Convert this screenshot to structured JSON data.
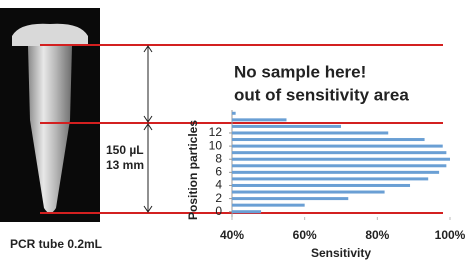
{
  "chart_data": {
    "type": "hbar",
    "ylabel": "Position particles",
    "xlabel": "Sensitivity",
    "x": [
      0,
      1,
      2,
      3,
      4,
      5,
      6,
      7,
      8,
      9,
      10,
      11,
      12,
      13,
      14,
      15
    ],
    "values": [
      48,
      60,
      72,
      82,
      89,
      94,
      97,
      99,
      100,
      99,
      98,
      93,
      83,
      70,
      55,
      41
    ],
    "color": "#6a9fd4",
    "xlim": [
      40,
      100
    ],
    "xticks": [
      {
        "value": 40,
        "label": "40%"
      },
      {
        "value": 60,
        "label": "60%"
      },
      {
        "value": 80,
        "label": "80%"
      },
      {
        "value": 100,
        "label": "100%"
      }
    ],
    "ylim": [
      -0.5,
      15.5
    ],
    "yticks": [
      0,
      2,
      4,
      6,
      8,
      10,
      12
    ],
    "annotations": {
      "warning_line1": "No sample here!",
      "warning_line2": "out of sensitivity area",
      "volume": "150 µL",
      "height": "13 mm",
      "caption": "PCR tube 0.2mL"
    }
  }
}
